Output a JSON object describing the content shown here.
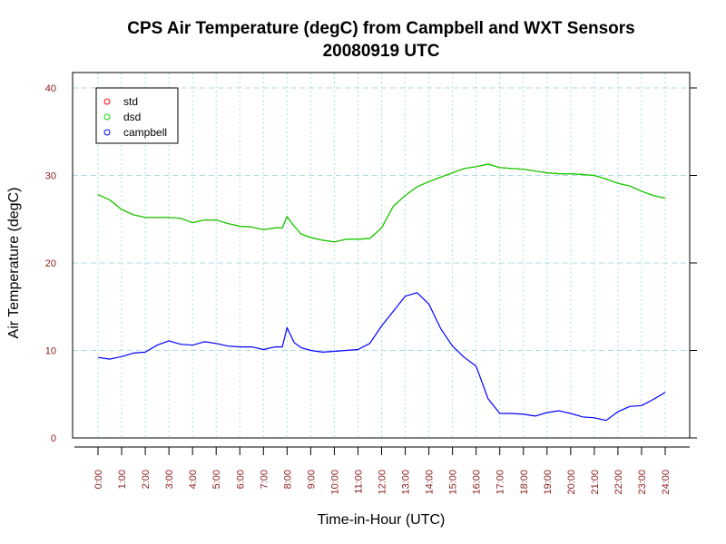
{
  "chart_data": {
    "type": "line",
    "title": "CPS Air Temperature (degC) from Campbell and WXT Sensors",
    "subtitle": "20080919  UTC",
    "xlabel": "Time-in-Hour (UTC)",
    "ylabel": "Air Temperature (degC)",
    "xlim": [
      0,
      24
    ],
    "ylim": [
      0,
      40
    ],
    "grid": true,
    "legend_position": "top-left",
    "x_ticks": [
      "0:00",
      "1:00",
      "2:00",
      "3:00",
      "4:00",
      "5:00",
      "6:00",
      "7:00",
      "8:00",
      "9:00",
      "10:00",
      "11:00",
      "12:00",
      "13:00",
      "14:00",
      "15:00",
      "16:00",
      "17:00",
      "18:00",
      "19:00",
      "20:00",
      "21:00",
      "22:00",
      "23:00",
      "24:00"
    ],
    "y_ticks": [
      "0",
      "10",
      "20",
      "30",
      "40"
    ],
    "x": [
      0,
      0.5,
      1,
      1.5,
      2,
      2.5,
      3,
      3.5,
      4,
      4.5,
      5,
      5.5,
      6,
      6.5,
      7,
      7.5,
      7.8,
      8,
      8.3,
      8.6,
      9,
      9.5,
      10,
      10.5,
      11,
      11.5,
      12,
      12.5,
      13,
      13.5,
      14,
      14.5,
      15,
      15.5,
      16,
      16.5,
      17,
      17.5,
      18,
      18.5,
      19,
      19.5,
      20,
      20.5,
      21,
      21.5,
      22,
      22.5,
      23,
      23.5,
      24
    ],
    "series": [
      {
        "name": "std",
        "color": "#ff0000",
        "values": [
          27.8,
          27.2,
          26.1,
          25.5,
          25.2,
          25.2,
          25.2,
          25.1,
          24.6,
          24.9,
          24.9,
          24.5,
          24.2,
          24.1,
          23.8,
          24.0,
          24.0,
          25.3,
          24.2,
          23.3,
          22.9,
          22.6,
          22.4,
          22.7,
          22.7,
          22.8,
          24.0,
          26.5,
          27.7,
          28.7,
          29.3,
          29.8,
          30.3,
          30.8,
          31.0,
          31.3,
          30.9,
          30.8,
          30.7,
          30.5,
          30.3,
          30.2,
          30.2,
          30.1,
          30.0,
          29.6,
          29.1,
          28.8,
          28.2,
          27.7,
          27.4
        ]
      },
      {
        "name": "dsd",
        "color": "#00dd00",
        "values": [
          27.8,
          27.2,
          26.1,
          25.5,
          25.2,
          25.2,
          25.2,
          25.1,
          24.6,
          24.9,
          24.9,
          24.5,
          24.2,
          24.1,
          23.8,
          24.0,
          24.0,
          25.3,
          24.2,
          23.3,
          22.9,
          22.6,
          22.4,
          22.7,
          22.7,
          22.8,
          24.0,
          26.5,
          27.7,
          28.7,
          29.3,
          29.8,
          30.3,
          30.8,
          31.0,
          31.3,
          30.9,
          30.8,
          30.7,
          30.5,
          30.3,
          30.2,
          30.2,
          30.1,
          30.0,
          29.6,
          29.1,
          28.8,
          28.2,
          27.7,
          27.4
        ]
      },
      {
        "name": "campbell",
        "color": "#0000ff",
        "values": [
          9.2,
          9.0,
          9.3,
          9.7,
          9.8,
          10.6,
          11.1,
          10.7,
          10.6,
          11.0,
          10.8,
          10.5,
          10.4,
          10.4,
          10.1,
          10.4,
          10.4,
          12.6,
          10.9,
          10.3,
          10.0,
          9.8,
          9.9,
          10.0,
          10.1,
          10.8,
          12.8,
          14.5,
          16.2,
          16.6,
          15.3,
          12.5,
          10.5,
          9.2,
          8.2,
          4.5,
          2.8,
          2.8,
          2.7,
          2.5,
          2.9,
          3.1,
          2.8,
          2.4,
          2.3,
          2.0,
          3.0,
          3.6,
          3.7,
          4.4,
          5.2
        ]
      }
    ]
  }
}
